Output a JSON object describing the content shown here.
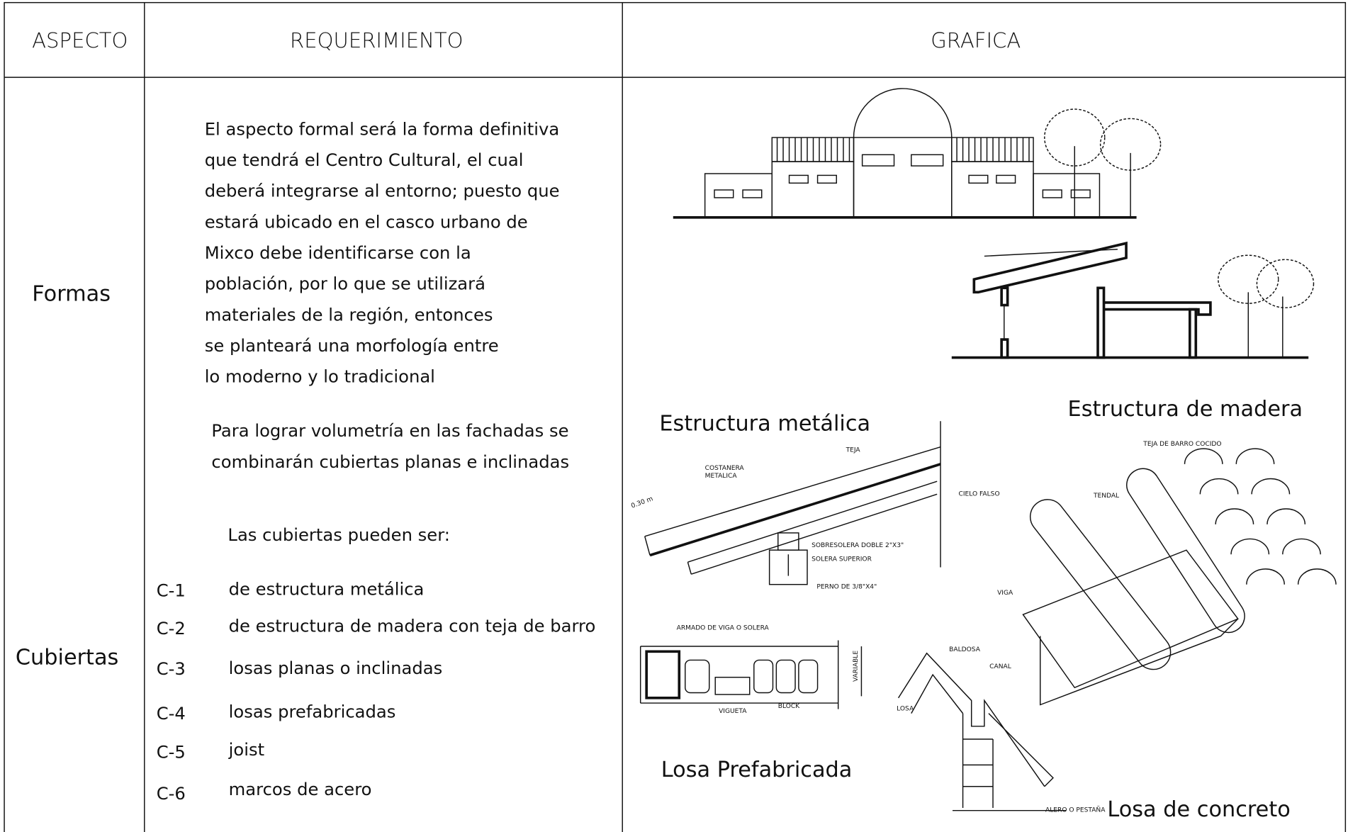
{
  "header": {
    "aspect": "ASPECTO",
    "requirement": "REQUERIMIENTO",
    "graphic": "GRAFICA"
  },
  "rows": [
    {
      "aspect": "Formas",
      "paragraphs": [
        [
          "El aspecto formal será la forma definitiva",
          "que tendrá el Centro Cultural, el cual",
          "deberá integrarse al entorno; puesto que",
          "estará ubicado en el casco urbano de",
          "Mixco debe identificarse con la",
          "población, por lo que se utilizará",
          "materiales de la región, entonces",
          "se planteará una morfología entre",
          "lo moderno y lo tradicional"
        ],
        [
          "Para lograr volumetría en las fachadas se",
          "combinarán cubiertas planas e inclinadas"
        ]
      ]
    },
    {
      "aspect": "Cubiertas",
      "intro": "Las cubiertas pueden ser:",
      "items": [
        {
          "code": "C-1",
          "text": "de estructura metálica"
        },
        {
          "code": "C-2",
          "text": "de estructura de madera con teja de barro"
        },
        {
          "code": "C-3",
          "text": "losas planas o inclinadas"
        },
        {
          "code": "C-4",
          "text": "losas prefabricadas"
        },
        {
          "code": "C-5",
          "text": "joist"
        },
        {
          "code": "C-6",
          "text": "marcos de acero"
        }
      ]
    }
  ],
  "graphics": {
    "captions": [
      "Estructura metálica",
      "Estructura de madera",
      "Losa Prefabricada",
      "Losa de concreto"
    ],
    "metal_labels": [
      "TEJA",
      "COSTANERA",
      "METALICA",
      "CIELO FALSO",
      "SOBRESOLERA DOBLE 2\"X3\"",
      "SOLERA SUPERIOR",
      "PERNO DE 3/8\"X4\"",
      "0.30 m"
    ],
    "wood_labels": [
      "TEJA DE BARRO COCIDO",
      "TENDAL",
      "VIGA"
    ],
    "prefab_labels": [
      "ARMADO DE VIGA O SOLERA",
      "VARIABLE",
      "VIGUETA",
      "BLOCK"
    ],
    "concrete_labels": [
      "BALDOSA",
      "CANAL",
      "LOSA",
      "ALERO O PESTAÑA"
    ]
  }
}
